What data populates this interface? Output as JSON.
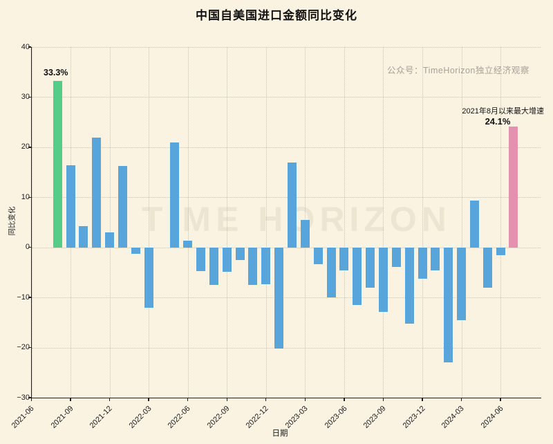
{
  "title": "中国自美国进口金额同比变化",
  "watermarks": {
    "small": "公众号：TimeHorizon独立经济观察",
    "large": "TIME HORIZON"
  },
  "annotations": {
    "first_bar_label": "33.3%",
    "last_bar_note": "2021年8月以来最大增速",
    "last_bar_label": "24.1%"
  },
  "colors": {
    "background": "#faf3e2",
    "bar_default": "#58a5dc",
    "bar_first": "#55cc88",
    "bar_last": "#e292af",
    "axis": "#1f1f1f",
    "watermark_small": "#a7a096"
  },
  "chart_data": {
    "type": "bar",
    "title": "中国自美国进口金额同比变化",
    "xlabel": "日期",
    "ylabel": "同比变化",
    "x": [
      "2021-08",
      "2021-09",
      "2021-10",
      "2021-11",
      "2021-12",
      "2022-01",
      "2022-02",
      "2022-03",
      "2022-04",
      "2022-05",
      "2022-06",
      "2022-07",
      "2022-08",
      "2022-09",
      "2022-10",
      "2022-11",
      "2022-12",
      "2023-01",
      "2023-02",
      "2023-03",
      "2023-04",
      "2023-05",
      "2023-06",
      "2023-07",
      "2023-08",
      "2023-09",
      "2023-10",
      "2023-11",
      "2023-12",
      "2024-01",
      "2024-02",
      "2024-03",
      "2024-04",
      "2024-05",
      "2024-06",
      "2024-07"
    ],
    "values": [
      33.3,
      16.4,
      4.3,
      21.9,
      3.0,
      16.2,
      -1.3,
      -12.0,
      0.0,
      21.0,
      1.4,
      -4.8,
      -7.5,
      -4.9,
      -2.5,
      -7.5,
      -7.4,
      -20.2,
      17.0,
      5.5,
      -3.3,
      -10.0,
      -4.6,
      -11.5,
      -8.1,
      -12.9,
      -3.9,
      -15.2,
      -6.3,
      -4.6,
      -22.9,
      -14.5,
      9.3,
      -8.0,
      -1.6,
      24.1
    ],
    "highlight": {
      "first_month": "2021-08",
      "last_month": "2024-07"
    },
    "ylim": [
      -30,
      40
    ],
    "yticks": [
      40,
      30,
      20,
      10,
      0,
      -10,
      -20,
      -30
    ],
    "ytick_labels": [
      "40",
      "30",
      "20",
      "10",
      "0",
      "−10",
      "−20",
      "−30"
    ],
    "xticks": [
      "2021-06",
      "2021-09",
      "2021-12",
      "2022-03",
      "2022-06",
      "2022-09",
      "2022-12",
      "2023-03",
      "2023-06",
      "2023-09",
      "2023-12",
      "2024-03",
      "2024-06"
    ],
    "grid": "dotted, both axes, faint",
    "legend": "none"
  }
}
